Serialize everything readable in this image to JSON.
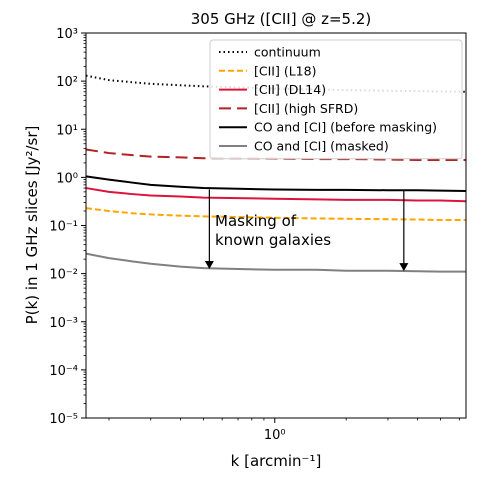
{
  "chart_data": {
    "type": "line",
    "title": "305 GHz ([CII] @ z=5.2)",
    "xlabel": "k [arcmin⁻¹]",
    "ylabel": "P(k) in 1 GHz slices [Jy²/sr]",
    "xscale": "log",
    "yscale": "log",
    "xlim": [
      0.16,
      6.4
    ],
    "ylim": [
      1e-05,
      1000
    ],
    "x_ticks": [
      {
        "value": 1,
        "label": "10⁰"
      }
    ],
    "y_ticks": [
      {
        "value": 1e-05,
        "label": "10⁻⁵"
      },
      {
        "value": 0.0001,
        "label": "10⁻⁴"
      },
      {
        "value": 0.001,
        "label": "10⁻³"
      },
      {
        "value": 0.01,
        "label": "10⁻²"
      },
      {
        "value": 0.1,
        "label": "10⁻¹"
      },
      {
        "value": 1,
        "label": "10⁰"
      },
      {
        "value": 10,
        "label": "10¹"
      },
      {
        "value": 100,
        "label": "10²"
      },
      {
        "value": 1000,
        "label": "10³"
      }
    ],
    "legend_position": "top-right",
    "series": [
      {
        "name": "continuum",
        "color": "#000000",
        "dash": "dotted",
        "x": [
          0.16,
          0.2,
          0.25,
          0.3,
          0.4,
          0.5,
          0.7,
          1.0,
          1.5,
          2.0,
          3.0,
          4.0,
          5.0,
          6.4
        ],
        "y": [
          130,
          105,
          95,
          88,
          82,
          78,
          74,
          70,
          67,
          65,
          63,
          62,
          61,
          60
        ]
      },
      {
        "name": "[CII] (L18)",
        "color": "#ffa500",
        "dash": "dashed",
        "x": [
          0.16,
          0.2,
          0.25,
          0.3,
          0.4,
          0.5,
          0.7,
          1.0,
          1.5,
          2.0,
          3.0,
          4.0,
          5.0,
          6.4
        ],
        "y": [
          0.23,
          0.2,
          0.18,
          0.17,
          0.16,
          0.155,
          0.15,
          0.145,
          0.14,
          0.138,
          0.135,
          0.133,
          0.13,
          0.13
        ]
      },
      {
        "name": "[CII] (DL14)",
        "color": "#dc143c",
        "dash": "solid",
        "x": [
          0.16,
          0.2,
          0.25,
          0.3,
          0.4,
          0.5,
          0.7,
          1.0,
          1.5,
          2.0,
          3.0,
          4.0,
          5.0,
          6.4
        ],
        "y": [
          0.6,
          0.5,
          0.45,
          0.42,
          0.4,
          0.38,
          0.37,
          0.36,
          0.35,
          0.34,
          0.34,
          0.33,
          0.33,
          0.32
        ]
      },
      {
        "name": "[CII] (high SFRD)",
        "color": "#b22222",
        "dash": "longdash",
        "x": [
          0.16,
          0.2,
          0.25,
          0.3,
          0.4,
          0.5,
          0.7,
          1.0,
          1.5,
          2.0,
          3.0,
          4.0,
          5.0,
          6.4
        ],
        "y": [
          3.8,
          3.2,
          2.9,
          2.7,
          2.6,
          2.5,
          2.5,
          2.45,
          2.4,
          2.4,
          2.35,
          2.3,
          2.3,
          2.3
        ]
      },
      {
        "name": "CO and [CI] (before masking)",
        "color": "#000000",
        "dash": "solid",
        "x": [
          0.16,
          0.2,
          0.25,
          0.3,
          0.4,
          0.5,
          0.7,
          1.0,
          1.5,
          2.0,
          3.0,
          4.0,
          5.0,
          6.4
        ],
        "y": [
          1.05,
          0.9,
          0.78,
          0.7,
          0.64,
          0.6,
          0.58,
          0.56,
          0.55,
          0.55,
          0.54,
          0.54,
          0.53,
          0.52
        ]
      },
      {
        "name": "CO and [CI] (masked)",
        "color": "#808080",
        "dash": "solid",
        "x": [
          0.16,
          0.2,
          0.25,
          0.3,
          0.4,
          0.5,
          0.7,
          1.0,
          1.5,
          2.0,
          3.0,
          4.0,
          5.0,
          6.4
        ],
        "y": [
          0.026,
          0.021,
          0.018,
          0.016,
          0.014,
          0.013,
          0.0125,
          0.012,
          0.012,
          0.0115,
          0.0115,
          0.0112,
          0.011,
          0.011
        ]
      }
    ],
    "annotation": {
      "text": [
        "Masking of",
        "known galaxies"
      ],
      "arrows": [
        {
          "x": 0.53,
          "from_y": 0.56,
          "to_y": 0.0125
        },
        {
          "x": 3.5,
          "from_y": 0.54,
          "to_y": 0.0113
        }
      ]
    }
  }
}
